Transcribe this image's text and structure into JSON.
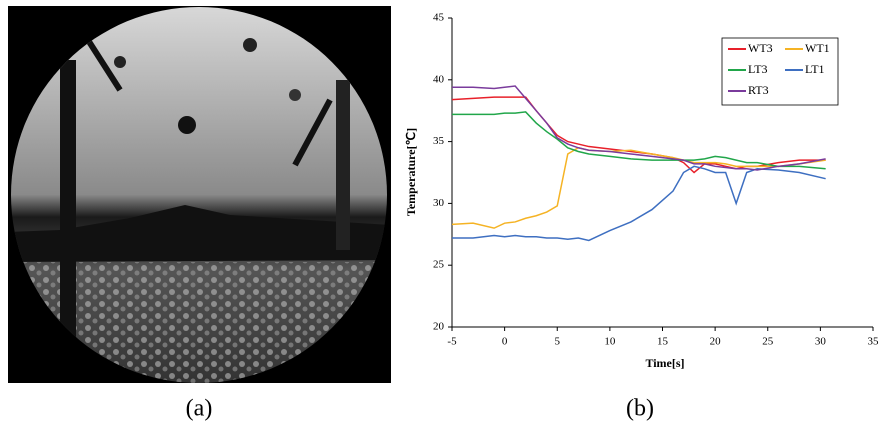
{
  "panel_labels": [
    "(a)",
    "(b)"
  ],
  "chart_data": {
    "type": "line",
    "x_label": "Time[s]",
    "y_label": "Temperature[℃]",
    "x": [
      -5,
      -3,
      -1,
      0,
      1,
      2,
      3,
      4,
      5,
      6,
      7,
      8,
      10,
      12,
      14,
      16,
      17,
      18,
      19,
      20,
      21,
      22,
      23,
      24,
      26,
      28,
      30.5
    ],
    "series": [
      {
        "name": "WT3",
        "color": "#e8202a",
        "values": [
          38.4,
          38.5,
          38.6,
          38.6,
          38.6,
          38.6,
          37.5,
          36.5,
          35.5,
          35,
          34.8,
          34.6,
          34.4,
          34.2,
          34,
          33.7,
          33.3,
          32.5,
          33.2,
          33.2,
          33,
          32.8,
          33,
          33,
          33.3,
          33.5,
          33.5
        ]
      },
      {
        "name": "WT1",
        "color": "#f5b324",
        "values": [
          28.3,
          28.4,
          28,
          28.4,
          28.5,
          28.8,
          29,
          29.3,
          29.8,
          34,
          34.5,
          34.3,
          34.2,
          34.3,
          34,
          33.7,
          33.5,
          33.3,
          33.3,
          33.3,
          33.2,
          33,
          33,
          33,
          33,
          33.2,
          33.5
        ]
      },
      {
        "name": "LT3",
        "color": "#21a64a",
        "values": [
          37.2,
          37.2,
          37.2,
          37.3,
          37.3,
          37.4,
          36.5,
          35.8,
          35.2,
          34.5,
          34.2,
          34,
          33.8,
          33.6,
          33.5,
          33.5,
          33.5,
          33.5,
          33.6,
          33.8,
          33.7,
          33.5,
          33.3,
          33.3,
          33,
          33,
          32.8
        ]
      },
      {
        "name": "LT1",
        "color": "#3e6fc1",
        "values": [
          27.2,
          27.2,
          27.4,
          27.3,
          27.4,
          27.3,
          27.3,
          27.2,
          27.2,
          27.1,
          27.2,
          27,
          27.8,
          28.5,
          29.5,
          31,
          32.5,
          33,
          32.8,
          32.5,
          32.5,
          30,
          32.5,
          32.8,
          32.7,
          32.5,
          32
        ]
      },
      {
        "name": "RT3",
        "color": "#7a3b9c",
        "values": [
          39.4,
          39.4,
          39.3,
          39.4,
          39.5,
          38.5,
          37.5,
          36.5,
          35.3,
          34.8,
          34.5,
          34.3,
          34.2,
          34,
          33.8,
          33.6,
          33.5,
          33.2,
          33.2,
          33,
          32.9,
          32.8,
          32.8,
          32.7,
          33,
          33.2,
          33.6
        ]
      }
    ],
    "xlim": [
      -5,
      35
    ],
    "xticks": [
      -5,
      0,
      5,
      10,
      15,
      20,
      25,
      30,
      35
    ],
    "ylim": [
      20,
      45
    ],
    "yticks": [
      20,
      25,
      30,
      35,
      40,
      45
    ],
    "legend_position": "top-right"
  }
}
